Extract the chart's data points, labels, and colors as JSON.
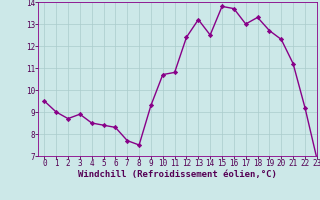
{
  "x": [
    0,
    1,
    2,
    3,
    4,
    5,
    6,
    7,
    8,
    9,
    10,
    11,
    12,
    13,
    14,
    15,
    16,
    17,
    18,
    19,
    20,
    21,
    22,
    23
  ],
  "y": [
    9.5,
    9.0,
    8.7,
    8.9,
    8.5,
    8.4,
    8.3,
    7.7,
    7.5,
    9.3,
    10.7,
    10.8,
    12.4,
    13.2,
    12.5,
    13.8,
    13.7,
    13.0,
    13.3,
    12.7,
    12.3,
    11.2,
    9.2,
    6.9
  ],
  "line_color": "#880088",
  "marker": "D",
  "marker_size": 2.2,
  "bg_color": "#cce8e8",
  "grid_color": "#aacccc",
  "xlabel": "Windchill (Refroidissement éolien,°C)",
  "xlabel_color": "#550055",
  "ylim": [
    7,
    14
  ],
  "xlim": [
    -0.5,
    23
  ],
  "yticks": [
    7,
    8,
    9,
    10,
    11,
    12,
    13,
    14
  ],
  "xticks": [
    0,
    1,
    2,
    3,
    4,
    5,
    6,
    7,
    8,
    9,
    10,
    11,
    12,
    13,
    14,
    15,
    16,
    17,
    18,
    19,
    20,
    21,
    22,
    23
  ],
  "tick_color": "#550055",
  "tick_fontsize": 5.5,
  "xlabel_fontsize": 6.5,
  "spine_color": "#880088",
  "linewidth": 1.0
}
